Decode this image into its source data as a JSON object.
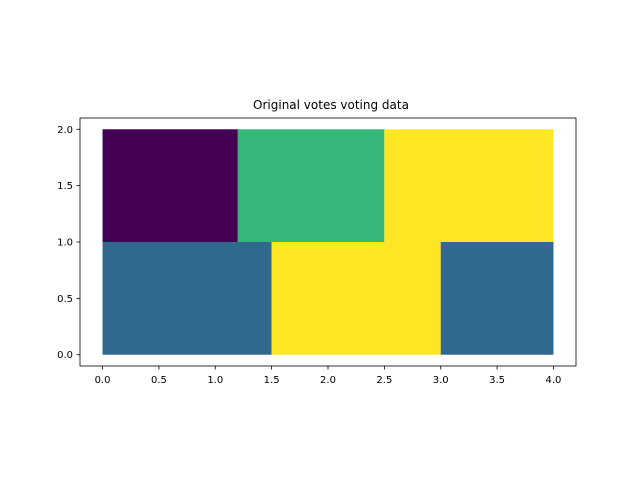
{
  "chart_data": {
    "type": "heatmap",
    "title": "Original votes voting data",
    "xlabel": "",
    "ylabel": "",
    "xlim": [
      -0.2,
      4.2
    ],
    "ylim": [
      -0.1,
      2.1
    ],
    "x_ticks": [
      "0.0",
      "0.5",
      "1.0",
      "1.5",
      "2.0",
      "2.5",
      "3.0",
      "3.5",
      "4.0"
    ],
    "y_ticks": [
      "0.0",
      "0.5",
      "1.0",
      "1.5",
      "2.0"
    ],
    "grid": false,
    "legend": "none",
    "rows": [
      {
        "y": [
          1.0,
          2.0
        ],
        "cells": [
          {
            "x": [
              0.0,
              1.2
            ],
            "color": "#440154"
          },
          {
            "x": [
              1.2,
              2.5
            ],
            "color": "#35b779"
          },
          {
            "x": [
              2.5,
              4.0
            ],
            "color": "#fde725"
          }
        ]
      },
      {
        "y": [
          0.0,
          1.0
        ],
        "cells": [
          {
            "x": [
              0.0,
              1.5
            ],
            "color": "#31688e"
          },
          {
            "x": [
              1.5,
              3.0
            ],
            "color": "#fde725"
          },
          {
            "x": [
              3.0,
              4.0
            ],
            "color": "#31688e"
          }
        ]
      }
    ]
  }
}
